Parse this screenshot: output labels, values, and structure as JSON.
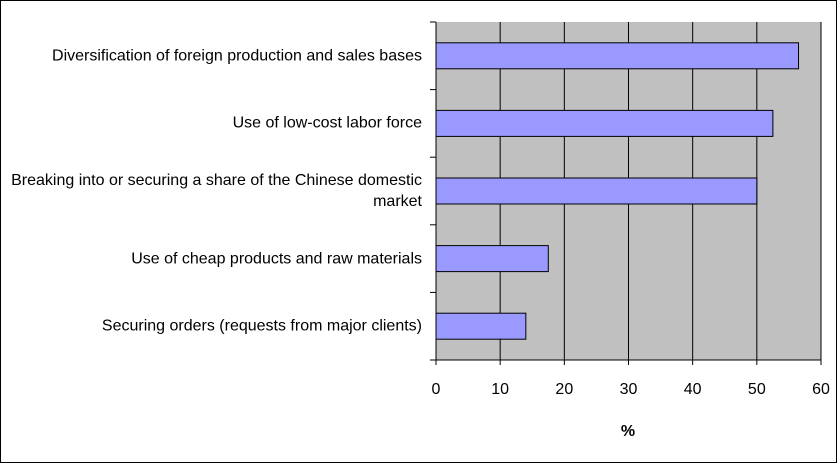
{
  "chart_data": {
    "type": "bar",
    "orientation": "horizontal",
    "categories": [
      "Diversification of foreign production and sales bases",
      "Use of low-cost labor force",
      "Breaking into or securing a share of the Chinese domestic market",
      "Use of cheap products and raw materials",
      "Securing orders (requests from major clients)"
    ],
    "values": [
      56.5,
      52.5,
      50,
      17.5,
      14
    ],
    "color": "#9999ff",
    "xlabel": "%",
    "xlim": [
      0,
      60
    ],
    "xticks": [
      0,
      10,
      20,
      30,
      40,
      50,
      60
    ],
    "grid": true
  }
}
